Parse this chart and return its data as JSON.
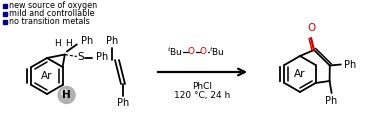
{
  "bg_color": "#ffffff",
  "arrow_color": "#000000",
  "oxygen_color": "#cc0000",
  "bullet_color": "#00008B",
  "bullet_texts": [
    "no transition metals",
    "mild and controllable",
    "new source of oxygen"
  ],
  "figsize": [
    3.78,
    1.34
  ],
  "dpi": 100
}
